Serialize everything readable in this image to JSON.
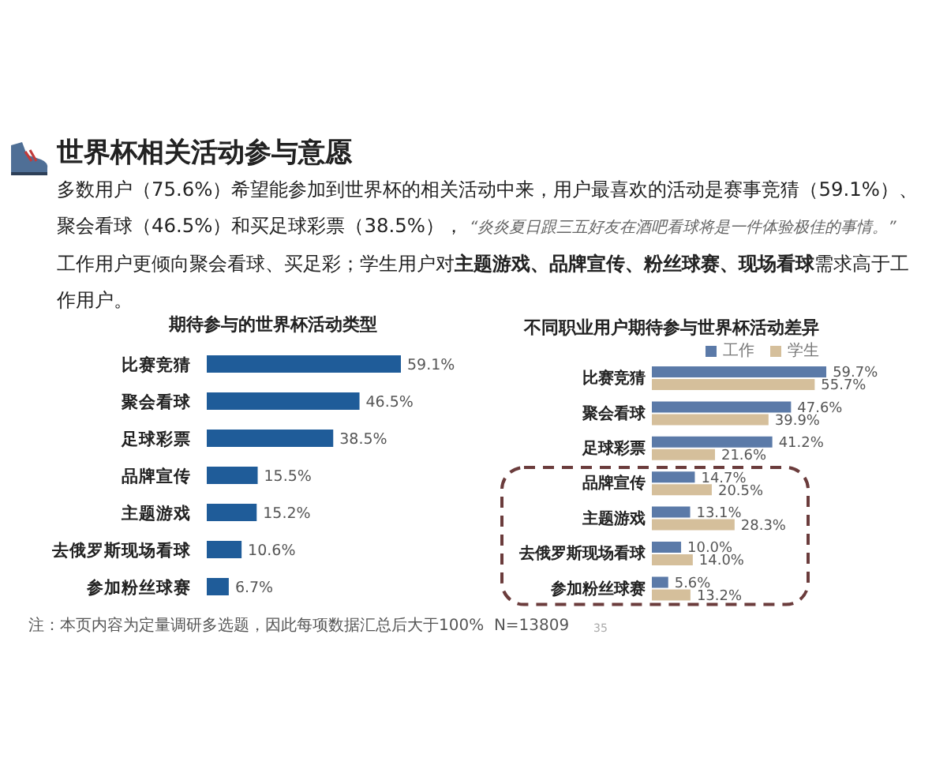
{
  "chart_data": [
    {
      "type": "bar",
      "orientation": "horizontal",
      "title": "期待参与的世界杯活动类型",
      "categories": [
        "比赛竞猜",
        "聚会看球",
        "足球彩票",
        "品牌宣传",
        "主题游戏",
        "去俄罗斯现场看球",
        "参加粉丝球赛"
      ],
      "values": [
        59.1,
        46.5,
        38.5,
        15.5,
        15.2,
        10.6,
        6.7
      ],
      "value_labels": [
        "59.1%",
        "46.5%",
        "38.5%",
        "15.5%",
        "15.2%",
        "10.6%",
        "6.7%"
      ],
      "color": "#1f5c99",
      "annotations": [
        "世界杯相关活动参与意愿",
        "多数用户（75.6%）希望能参加到世界杯的相关活动中来，用户最喜欢的活动是赛事竞猜（59.1%）、聚会看球（46.5%）和买足球彩票（38.5%），",
        "“炎炎夏日跟三五好友在酒吧看球将是一件体验极佳的事情。”",
        "工作用户更倾向聚会看球、买足彩；学生用户对",
        "主题游戏、品牌宣传、粉丝球赛、现场看球",
        "需求高于工作用户。",
        "注：本页内容为定量调研多选题，因此每项数据汇总后大于100%  N=13809",
        "35"
      ]
    },
    {
      "type": "bar",
      "orientation": "horizontal",
      "title": "不同职业用户期待参与世界杯活动差异",
      "categories": [
        "比赛竞猜",
        "聚会看球",
        "足球彩票",
        "品牌宣传",
        "主题游戏",
        "去俄罗斯现场看球",
        "参加粉丝球赛"
      ],
      "series": [
        {
          "name": "工作",
          "color": "#5b7aa8",
          "values": [
            59.7,
            47.6,
            41.2,
            14.7,
            13.1,
            10.0,
            5.6
          ],
          "value_labels": [
            "59.7%",
            "47.6%",
            "41.2%",
            "14.7%",
            "13.1%",
            "10.0%",
            "5.6%"
          ]
        },
        {
          "name": "学生",
          "color": "#d5bf9b",
          "values": [
            55.7,
            39.9,
            21.6,
            20.5,
            28.3,
            14.0,
            13.2
          ],
          "value_labels": [
            "55.7%",
            "39.9%",
            "21.6%",
            "20.5%",
            "28.3%",
            "14.0%",
            "13.2%"
          ]
        }
      ],
      "legend": "top"
    }
  ]
}
